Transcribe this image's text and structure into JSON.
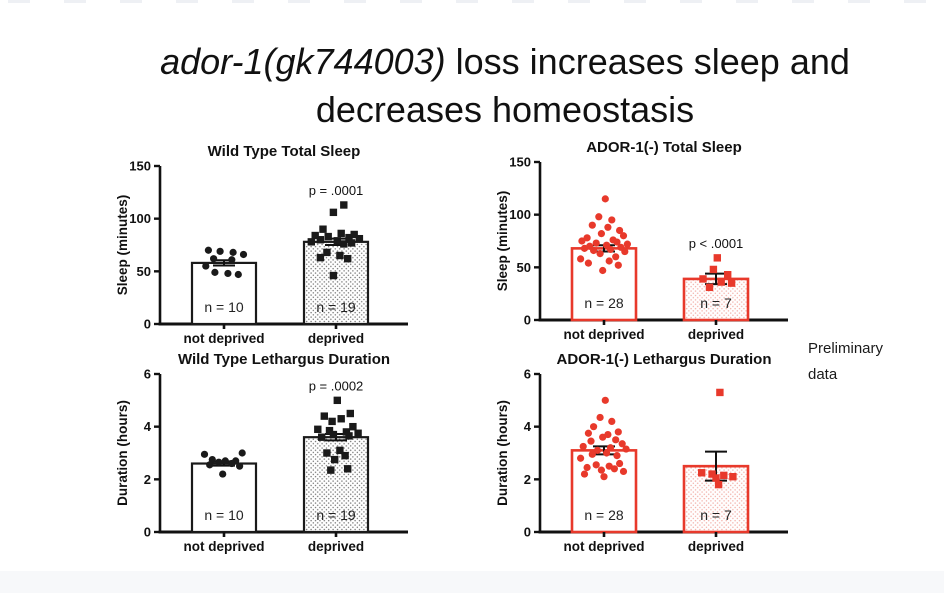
{
  "slide": {
    "title_italic": "ador-1(gk744003)",
    "title_rest": " loss increases sleep and",
    "title_line2": "decreases homeostasis",
    "note_line1": "Preliminary",
    "note_line2": "data"
  },
  "colors": {
    "wild_type_accent": "#1a1a1a",
    "mutant_accent": "#e8392b",
    "error_bar": "#111111",
    "footer_band": "#f7f8fa"
  },
  "chart_data": [
    {
      "type": "bar",
      "overlay": "scatter",
      "title": "Wild Type Total Sleep",
      "ylabel": "Sleep (minutes)",
      "ylim": [
        0,
        150
      ],
      "yticks": [
        0,
        50,
        100,
        150
      ],
      "categories": [
        "not deprived",
        "deprived"
      ],
      "accent": "#1a1a1a",
      "stipple_dot": "#6f6f6f",
      "stipple_bg": "#ffffff",
      "groups": [
        {
          "label": "not deprived",
          "n_label": "n = 10",
          "marker": "circle",
          "bar_fill": "white",
          "mean": 58,
          "sem": 2.5,
          "p_label": null,
          "values": [
            70,
            69,
            68,
            66,
            62,
            61,
            55,
            49,
            48,
            47
          ],
          "jitter": [
            -0.6,
            -0.15,
            0.35,
            0.75,
            -0.4,
            0.3,
            -0.7,
            -0.35,
            0.15,
            0.55
          ]
        },
        {
          "label": "deprived",
          "n_label": "n = 19",
          "marker": "square",
          "bar_fill": "stipple",
          "mean": 78,
          "sem": 3,
          "p_label": "p = .0001",
          "values": [
            113,
            106,
            90,
            86,
            85,
            84,
            83,
            82,
            81,
            80,
            79,
            78,
            77,
            76,
            68,
            65,
            63,
            62,
            46
          ],
          "jitter": [
            0.3,
            -0.1,
            -0.5,
            0.2,
            0.7,
            -0.8,
            -0.3,
            0.5,
            0.9,
            -0.6,
            0.05,
            -0.95,
            0.6,
            0.3,
            -0.35,
            0.15,
            -0.6,
            0.45,
            -0.1
          ]
        }
      ]
    },
    {
      "type": "bar",
      "overlay": "scatter",
      "title": "ADOR-1(-) Total Sleep",
      "ylabel": "Sleep (minutes)",
      "ylim": [
        0,
        150
      ],
      "yticks": [
        0,
        50,
        100,
        150
      ],
      "categories": [
        "not deprived",
        "deprived"
      ],
      "accent": "#e8392b",
      "stipple_dot": "#f2aca4",
      "stipple_bg": "#fffefe",
      "groups": [
        {
          "label": "not deprived",
          "n_label": "n = 28",
          "marker": "circle",
          "bar_fill": "white",
          "mean": 68,
          "sem": 3,
          "p_label": null,
          "values": [
            115,
            98,
            95,
            90,
            88,
            85,
            82,
            80,
            78,
            76,
            75,
            74,
            73,
            72,
            71,
            70,
            69,
            68,
            67,
            66,
            65,
            63,
            60,
            58,
            56,
            54,
            52,
            47
          ],
          "jitter": [
            0.05,
            -0.2,
            0.3,
            -0.45,
            0.15,
            0.6,
            -0.1,
            0.75,
            -0.65,
            0.35,
            -0.85,
            0.5,
            -0.3,
            0.9,
            0.1,
            -0.55,
            0.65,
            -0.75,
            0.25,
            -0.4,
            0.8,
            -0.15,
            0.45,
            -0.9,
            0.2,
            -0.6,
            0.55,
            -0.05
          ]
        },
        {
          "label": "deprived",
          "n_label": "n = 7",
          "marker": "square",
          "bar_fill": "stipple",
          "mean": 39,
          "sem": 5,
          "p_label": "p < .0001",
          "values": [
            59,
            48,
            43,
            39,
            36,
            35,
            31
          ],
          "jitter": [
            0.05,
            -0.1,
            0.45,
            -0.5,
            0.2,
            0.6,
            -0.25
          ]
        }
      ]
    },
    {
      "type": "bar",
      "overlay": "scatter",
      "title": "Wild Type Lethargus Duration",
      "ylabel": "Duration (hours)",
      "ylim": [
        0,
        6
      ],
      "yticks": [
        0,
        2,
        4,
        6
      ],
      "categories": [
        "not deprived",
        "deprived"
      ],
      "accent": "#1a1a1a",
      "stipple_dot": "#6f6f6f",
      "stipple_bg": "#ffffff",
      "groups": [
        {
          "label": "not deprived",
          "n_label": "n = 10",
          "marker": "circle",
          "bar_fill": "white",
          "mean": 2.6,
          "sem": 0.08,
          "p_label": null,
          "values": [
            2.95,
            3.0,
            2.75,
            2.7,
            2.7,
            2.65,
            2.6,
            2.55,
            2.5,
            2.2
          ],
          "jitter": [
            -0.75,
            0.7,
            -0.45,
            0.05,
            0.45,
            -0.2,
            0.3,
            -0.55,
            0.6,
            -0.05
          ]
        },
        {
          "label": "deprived",
          "n_label": "n = 19",
          "marker": "square",
          "bar_fill": "stipple",
          "mean": 3.6,
          "sem": 0.12,
          "p_label": "p = .0002",
          "values": [
            5.0,
            4.5,
            4.4,
            4.3,
            4.2,
            4.0,
            3.9,
            3.85,
            3.8,
            3.75,
            3.7,
            3.65,
            3.6,
            3.1,
            3.0,
            2.9,
            2.75,
            2.4,
            2.35
          ],
          "jitter": [
            0.05,
            0.55,
            -0.45,
            0.2,
            -0.15,
            0.65,
            -0.7,
            -0.25,
            0.4,
            0.85,
            -0.1,
            0.5,
            -0.55,
            0.15,
            -0.35,
            0.35,
            -0.05,
            0.45,
            -0.2
          ]
        }
      ]
    },
    {
      "type": "bar",
      "overlay": "scatter",
      "title": "ADOR-1(-) Lethargus Duration",
      "ylabel": "Duration (hours)",
      "ylim": [
        0,
        6
      ],
      "yticks": [
        0,
        2,
        4,
        6
      ],
      "categories": [
        "not deprived",
        "deprived"
      ],
      "accent": "#e8392b",
      "stipple_dot": "#f2aca4",
      "stipple_bg": "#fffefe",
      "groups": [
        {
          "label": "not deprived",
          "n_label": "n = 28",
          "marker": "circle",
          "bar_fill": "white",
          "mean": 3.1,
          "sem": 0.15,
          "p_label": null,
          "values": [
            5.0,
            4.35,
            4.2,
            4.0,
            3.8,
            3.75,
            3.7,
            3.6,
            3.5,
            3.45,
            3.35,
            3.25,
            3.2,
            3.15,
            3.1,
            3.0,
            2.95,
            2.9,
            2.8,
            2.6,
            2.55,
            2.5,
            2.45,
            2.4,
            2.35,
            2.3,
            2.2,
            2.1
          ],
          "jitter": [
            0.05,
            -0.15,
            0.3,
            -0.4,
            0.55,
            -0.6,
            0.15,
            -0.05,
            0.45,
            -0.5,
            0.7,
            -0.8,
            0.25,
            0.85,
            -0.25,
            0.1,
            -0.45,
            0.5,
            -0.9,
            0.6,
            -0.3,
            0.2,
            -0.65,
            0.4,
            -0.1,
            0.75,
            -0.75,
            0.0
          ]
        },
        {
          "label": "deprived",
          "n_label": "n = 7",
          "marker": "square",
          "bar_fill": "stipple",
          "mean": 2.5,
          "sem": 0.55,
          "p_label": null,
          "values": [
            5.3,
            2.25,
            2.2,
            2.15,
            2.1,
            2.05,
            1.8
          ],
          "jitter": [
            0.15,
            -0.55,
            -0.15,
            0.3,
            0.65,
            0.0,
            0.1
          ]
        }
      ]
    }
  ]
}
